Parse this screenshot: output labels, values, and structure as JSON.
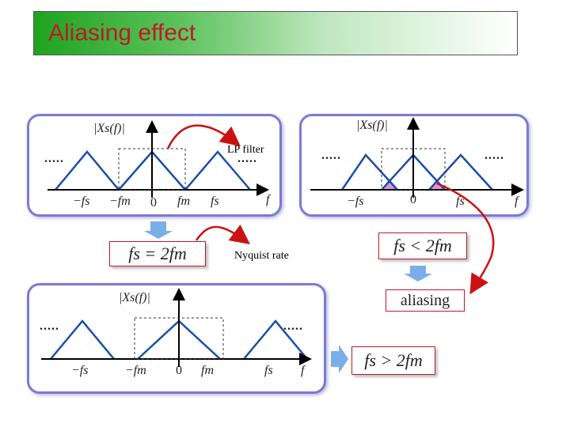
{
  "title": "Aliasing effect",
  "panels": {
    "top_left": {
      "y_label": "|Xs(f)|",
      "x_labels": [
        "−fs",
        "−fm",
        "0",
        "fm",
        "fs",
        "f"
      ]
    },
    "top_right": {
      "y_label": "|Xs(f)|",
      "x_labels": [
        "−fs",
        "0",
        "fs",
        "f"
      ]
    },
    "bottom": {
      "y_label": "|Xs(f)|",
      "x_labels": [
        "−fs",
        "−fm",
        "0",
        "fm",
        "fs",
        "f"
      ]
    }
  },
  "dots": ".....",
  "annotations": {
    "lp_filter": "LP filter",
    "nyquist_rate": "Nyquist rate",
    "aliasing": "aliasing"
  },
  "formulas": {
    "equal": "fs = 2fm",
    "less": "fs < 2fm",
    "greater": "fs > 2fm"
  },
  "colors": {
    "title_text": "#c0182a",
    "panel_border": "#7a7ad6",
    "arrow_red": "#cc1111",
    "overlap_fill": "#e38fd6",
    "down_arrow": "#7aaee8"
  }
}
